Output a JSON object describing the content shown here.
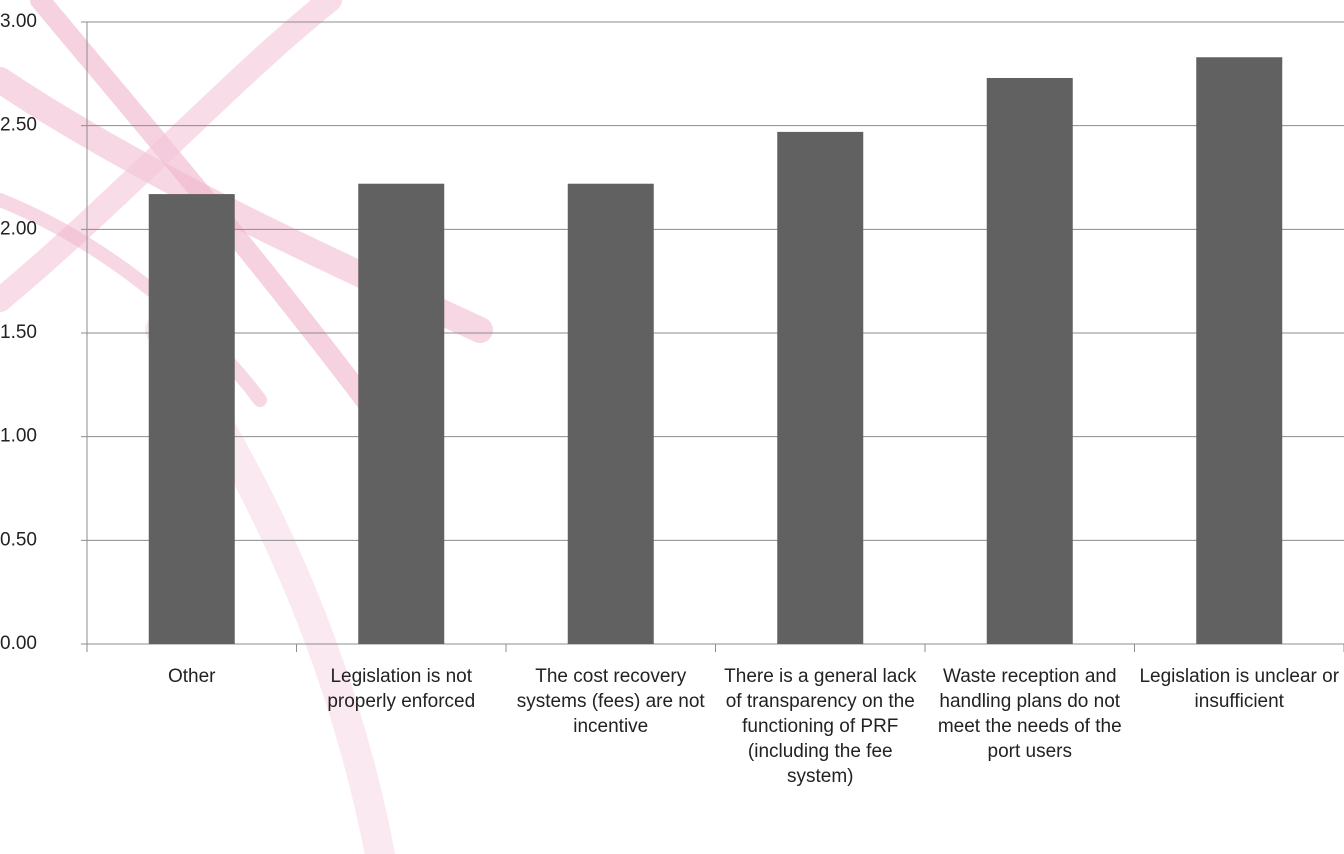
{
  "chart_data": {
    "type": "bar",
    "categories": [
      "Other",
      "Legislation is not properly enforced",
      "The cost recovery systems (fees) are not incentive",
      "There is a general lack of transparency on the functioning of PRF (including the fee system)",
      "Waste reception and handling plans do not meet the needs of the port users",
      "Legislation is unclear or insufficient"
    ],
    "values": [
      2.17,
      2.22,
      2.22,
      2.47,
      2.73,
      2.83
    ],
    "color": "#616161",
    "ylim": [
      0,
      3
    ],
    "yticks": [
      {
        "value": 0,
        "label": "0.00"
      },
      {
        "value": 0.5,
        "label": "0.50"
      },
      {
        "value": 1,
        "label": "1.00"
      },
      {
        "value": 1.5,
        "label": "1.50"
      },
      {
        "value": 2,
        "label": "2.00"
      },
      {
        "value": 2.5,
        "label": "2.50"
      },
      {
        "value": 3,
        "label": "3.00"
      }
    ],
    "grid": true
  }
}
